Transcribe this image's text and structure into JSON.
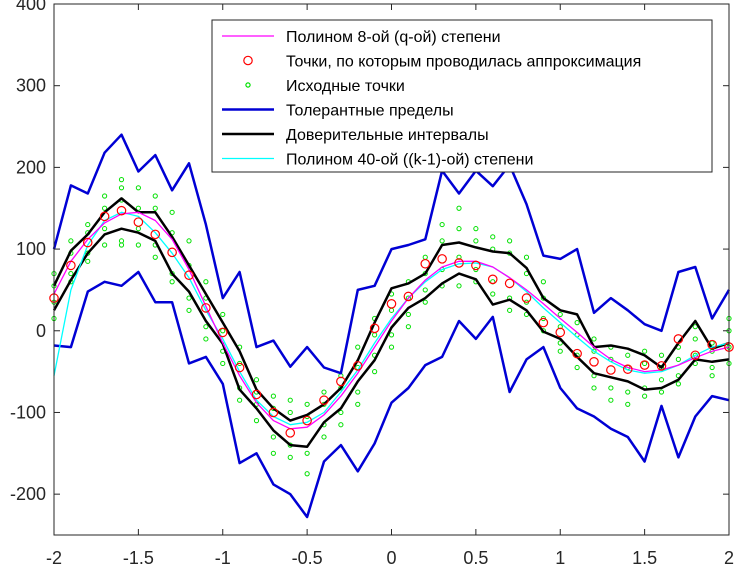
{
  "chart_data": {
    "type": "line",
    "xlim": [
      -2,
      2
    ],
    "ylim": [
      -250,
      400
    ],
    "xticks": [
      -2,
      -1.5,
      -1,
      -0.5,
      0,
      0.5,
      1,
      1.5,
      2
    ],
    "yticks": [
      -200,
      -100,
      0,
      100,
      200,
      300,
      400
    ],
    "xtick_labels": [
      "-2",
      "-1.5",
      "-1",
      "-0.5",
      "0",
      "0.5",
      "1",
      "1.5",
      "2"
    ],
    "ytick_labels": [
      "-200",
      "-100",
      "0",
      "100",
      "200",
      "300",
      "400"
    ],
    "grid": false,
    "legend_position": "top-right",
    "legend": [
      "Полином 8-ой (q-ой) степени",
      "Точки, по которым проводилась аппроксимация",
      "Исходные точки",
      "Толерантные пределы",
      "Доверительные интервалы",
      "Полином 40-ой ((k-1)-ой) степени"
    ],
    "x": [
      -2,
      -1.9,
      -1.8,
      -1.7,
      -1.6,
      -1.5,
      -1.4,
      -1.3,
      -1.2,
      -1.1,
      -1,
      -0.9,
      -0.8,
      -0.7,
      -0.6,
      -0.5,
      -0.4,
      -0.3,
      -0.2,
      -0.1,
      0,
      0.1,
      0.2,
      0.3,
      0.4,
      0.5,
      0.6,
      0.7,
      0.8,
      0.9,
      1,
      1.1,
      1.2,
      1.3,
      1.4,
      1.5,
      1.6,
      1.7,
      1.8,
      1.9,
      2
    ],
    "series": [
      {
        "name": "Полином 8-ой (q-ой) степени",
        "color": "#ff00ff",
        "values": [
          45,
          85,
          112,
          132,
          143,
          145,
          135,
          112,
          75,
          30,
          -15,
          -55,
          -88,
          -110,
          -120,
          -118,
          -103,
          -80,
          -52,
          -20,
          12,
          40,
          62,
          78,
          85,
          85,
          78,
          65,
          50,
          33,
          15,
          -2,
          -20,
          -35,
          -45,
          -50,
          -48,
          -42,
          -33,
          -25,
          -20
        ]
      },
      {
        "name": "Точки, по которым проводилась аппроксимация",
        "color": "#ff0000",
        "values": [
          40,
          80,
          108,
          140,
          147,
          133,
          118,
          96,
          68,
          28,
          -2,
          -45,
          -78,
          -100,
          -125,
          -110,
          -85,
          -62,
          -43,
          3,
          33,
          42,
          82,
          88,
          83,
          80,
          63,
          58,
          40,
          10,
          -2,
          -28,
          -38,
          -48,
          -47,
          -42,
          -43,
          -10,
          -30,
          -17,
          -20
        ]
      },
      {
        "name": "Полином 40-ой ((k-1)-ой) степени",
        "color": "#00ffff",
        "values": [
          -55,
          50,
          105,
          135,
          145,
          140,
          120,
          95,
          65,
          25,
          -10,
          -50,
          -85,
          -105,
          -115,
          -112,
          -100,
          -75,
          -48,
          -15,
          15,
          40,
          60,
          75,
          82,
          83,
          78,
          65,
          48,
          28,
          10,
          -8,
          -25,
          -38,
          -48,
          -52,
          -50,
          -42,
          -30,
          -20,
          -15
        ]
      },
      {
        "name": "Толерантные пределы",
        "color": "#0000d4",
        "upper": [
          100,
          178,
          168,
          218,
          240,
          195,
          215,
          172,
          205,
          130,
          40,
          72,
          -20,
          -12,
          -44,
          -20,
          -45,
          -52,
          50,
          55,
          100,
          105,
          112,
          196,
          168,
          196,
          177,
          203,
          155,
          92,
          88,
          100,
          22,
          40,
          25,
          8,
          0,
          72,
          78,
          15,
          50
        ],
        "lower": [
          -18,
          -20,
          48,
          60,
          55,
          72,
          35,
          35,
          -40,
          -32,
          -65,
          -162,
          -150,
          -188,
          -200,
          -228,
          -160,
          -140,
          -172,
          -138,
          -88,
          -70,
          -42,
          -32,
          12,
          -10,
          17,
          -75,
          -35,
          -20,
          -70,
          -95,
          -105,
          -120,
          -130,
          -160,
          -92,
          -155,
          -105,
          -80,
          -85
        ]
      },
      {
        "name": "Доверительные интервалы",
        "color": "#000000",
        "upper": [
          55,
          98,
          118,
          145,
          162,
          145,
          145,
          115,
          80,
          45,
          10,
          -25,
          -72,
          -95,
          -110,
          -103,
          -90,
          -70,
          -36,
          10,
          52,
          58,
          70,
          105,
          108,
          102,
          97,
          95,
          77,
          40,
          25,
          20,
          -20,
          -18,
          -22,
          -30,
          -45,
          -15,
          12,
          -22,
          -15
        ],
        "lower": [
          25,
          62,
          95,
          118,
          125,
          120,
          110,
          70,
          48,
          12,
          -16,
          -72,
          -95,
          -122,
          -140,
          -142,
          -112,
          -95,
          -62,
          -36,
          4,
          28,
          40,
          58,
          70,
          63,
          32,
          38,
          25,
          -1,
          -10,
          -32,
          -52,
          -57,
          -62,
          -72,
          -70,
          -60,
          -35,
          -38,
          -35
        ]
      },
      {
        "name": "Исходные точки",
        "color": "#00e000",
        "points": [
          [
            -2,
            55
          ],
          [
            -2,
            35
          ],
          [
            -2,
            15
          ],
          [
            -2,
            70
          ],
          [
            -1.9,
            110
          ],
          [
            -1.9,
            95
          ],
          [
            -1.9,
            70
          ],
          [
            -1.9,
            60
          ],
          [
            -1.8,
            130
          ],
          [
            -1.8,
            120
          ],
          [
            -1.8,
            95
          ],
          [
            -1.8,
            85
          ],
          [
            -1.7,
            165
          ],
          [
            -1.7,
            150
          ],
          [
            -1.7,
            125
          ],
          [
            -1.7,
            105
          ],
          [
            -1.6,
            185
          ],
          [
            -1.6,
            175
          ],
          [
            -1.6,
            160
          ],
          [
            -1.6,
            110
          ],
          [
            -1.6,
            105
          ],
          [
            -1.5,
            175
          ],
          [
            -1.5,
            150
          ],
          [
            -1.5,
            125
          ],
          [
            -1.5,
            105
          ],
          [
            -1.4,
            165
          ],
          [
            -1.4,
            150
          ],
          [
            -1.4,
            105
          ],
          [
            -1.4,
            90
          ],
          [
            -1.3,
            145
          ],
          [
            -1.3,
            120
          ],
          [
            -1.3,
            70
          ],
          [
            -1.3,
            60
          ],
          [
            -1.2,
            110
          ],
          [
            -1.2,
            80
          ],
          [
            -1.2,
            40
          ],
          [
            -1.2,
            25
          ],
          [
            -1.1,
            60
          ],
          [
            -1.1,
            40
          ],
          [
            -1.1,
            5
          ],
          [
            -1.1,
            -10
          ],
          [
            -1,
            20
          ],
          [
            -1,
            0
          ],
          [
            -1,
            -25
          ],
          [
            -1,
            -40
          ],
          [
            -0.9,
            -20
          ],
          [
            -0.9,
            -40
          ],
          [
            -0.9,
            -70
          ],
          [
            -0.9,
            -85
          ],
          [
            -0.8,
            -60
          ],
          [
            -0.8,
            -75
          ],
          [
            -0.8,
            -90
          ],
          [
            -0.8,
            -110
          ],
          [
            -0.7,
            -80
          ],
          [
            -0.7,
            -95
          ],
          [
            -0.7,
            -130
          ],
          [
            -0.7,
            -150
          ],
          [
            -0.6,
            -85
          ],
          [
            -0.6,
            -100
          ],
          [
            -0.6,
            -140
          ],
          [
            -0.6,
            -155
          ],
          [
            -0.5,
            -90
          ],
          [
            -0.5,
            -105
          ],
          [
            -0.5,
            -150
          ],
          [
            -0.5,
            -175
          ],
          [
            -0.4,
            -75
          ],
          [
            -0.4,
            -90
          ],
          [
            -0.4,
            -115
          ],
          [
            -0.4,
            -130
          ],
          [
            -0.3,
            -55
          ],
          [
            -0.3,
            -70
          ],
          [
            -0.3,
            -100
          ],
          [
            -0.3,
            -115
          ],
          [
            -0.2,
            -20
          ],
          [
            -0.2,
            -45
          ],
          [
            -0.2,
            -75
          ],
          [
            -0.2,
            -90
          ],
          [
            -0.1,
            15
          ],
          [
            -0.1,
            -5
          ],
          [
            -0.1,
            -30
          ],
          [
            -0.1,
            -50
          ],
          [
            0,
            45
          ],
          [
            0,
            25
          ],
          [
            0,
            -5
          ],
          [
            0,
            -20
          ],
          [
            0.1,
            60
          ],
          [
            0.1,
            40
          ],
          [
            0.1,
            20
          ],
          [
            0.1,
            5
          ],
          [
            0.2,
            90
          ],
          [
            0.2,
            70
          ],
          [
            0.2,
            50
          ],
          [
            0.2,
            35
          ],
          [
            0.3,
            130
          ],
          [
            0.3,
            110
          ],
          [
            0.3,
            75
          ],
          [
            0.3,
            55
          ],
          [
            0.4,
            150
          ],
          [
            0.4,
            125
          ],
          [
            0.4,
            90
          ],
          [
            0.4,
            55
          ],
          [
            0.5,
            125
          ],
          [
            0.5,
            110
          ],
          [
            0.5,
            75
          ],
          [
            0.5,
            60
          ],
          [
            0.6,
            115
          ],
          [
            0.6,
            100
          ],
          [
            0.6,
            60
          ],
          [
            0.6,
            45
          ],
          [
            0.7,
            110
          ],
          [
            0.7,
            95
          ],
          [
            0.7,
            40
          ],
          [
            0.7,
            25
          ],
          [
            0.8,
            90
          ],
          [
            0.8,
            70
          ],
          [
            0.8,
            35
          ],
          [
            0.8,
            20
          ],
          [
            0.9,
            60
          ],
          [
            0.9,
            40
          ],
          [
            0.9,
            15
          ],
          [
            0.9,
            0
          ],
          [
            1,
            20
          ],
          [
            1,
            5
          ],
          [
            1,
            -15
          ],
          [
            1,
            -25
          ],
          [
            1.1,
            10
          ],
          [
            1.1,
            -5
          ],
          [
            1.1,
            -30
          ],
          [
            1.1,
            -45
          ],
          [
            1.2,
            -10
          ],
          [
            1.2,
            -25
          ],
          [
            1.2,
            -55
          ],
          [
            1.2,
            -70
          ],
          [
            1.3,
            -20
          ],
          [
            1.3,
            -35
          ],
          [
            1.3,
            -70
          ],
          [
            1.3,
            -85
          ],
          [
            1.4,
            -30
          ],
          [
            1.4,
            -45
          ],
          [
            1.4,
            -75
          ],
          [
            1.4,
            -90
          ],
          [
            1.5,
            -25
          ],
          [
            1.5,
            -40
          ],
          [
            1.5,
            -70
          ],
          [
            1.5,
            -80
          ],
          [
            1.6,
            -30
          ],
          [
            1.6,
            -45
          ],
          [
            1.6,
            -60
          ],
          [
            1.6,
            -75
          ],
          [
            1.7,
            -20
          ],
          [
            1.7,
            -35
          ],
          [
            1.7,
            -55
          ],
          [
            1.7,
            -65
          ],
          [
            1.8,
            5
          ],
          [
            1.8,
            -10
          ],
          [
            1.8,
            -30
          ],
          [
            1.8,
            -40
          ],
          [
            1.9,
            -15
          ],
          [
            1.9,
            -25
          ],
          [
            1.9,
            -45
          ],
          [
            1.9,
            -55
          ],
          [
            2,
            15
          ],
          [
            2,
            0
          ],
          [
            2,
            -20
          ],
          [
            2,
            -40
          ]
        ]
      }
    ]
  }
}
